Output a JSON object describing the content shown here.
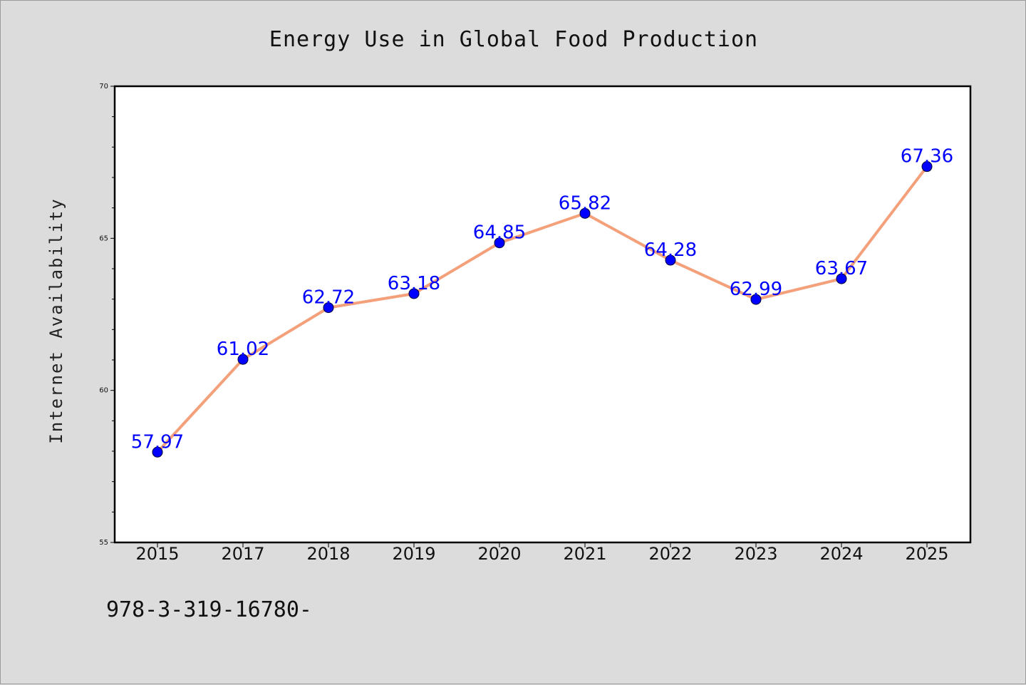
{
  "chart_data": {
    "type": "line",
    "title": "Energy Use in Global Food Production",
    "xlabel": "",
    "ylabel": "Internet Availability",
    "categories": [
      "2015",
      "2017",
      "2018",
      "2019",
      "2020",
      "2021",
      "2022",
      "2023",
      "2024",
      "2025"
    ],
    "series": [
      {
        "values": [
          57.97,
          61.02,
          62.72,
          63.18,
          64.85,
          65.82,
          64.28,
          62.99,
          63.67,
          67.36
        ],
        "data_labels": [
          "57.97",
          "61.02",
          "62.72",
          "63.18",
          "64.85",
          "65.82",
          "64.28",
          "62.99",
          "63.67",
          "67.36"
        ],
        "line_color": "#f4a07a",
        "marker_color": "#0000ff"
      }
    ],
    "ylim": [
      55,
      70
    ],
    "yticks": [
      "55",
      "60",
      "65",
      "70"
    ],
    "grid": false,
    "legend": "none",
    "colors": {
      "background": "#dcdcdc",
      "plot_background": "#ffffff",
      "axis": "#000000",
      "label_color": "#0000ff"
    }
  },
  "footer": {
    "text": "978-3-319-16780-"
  }
}
